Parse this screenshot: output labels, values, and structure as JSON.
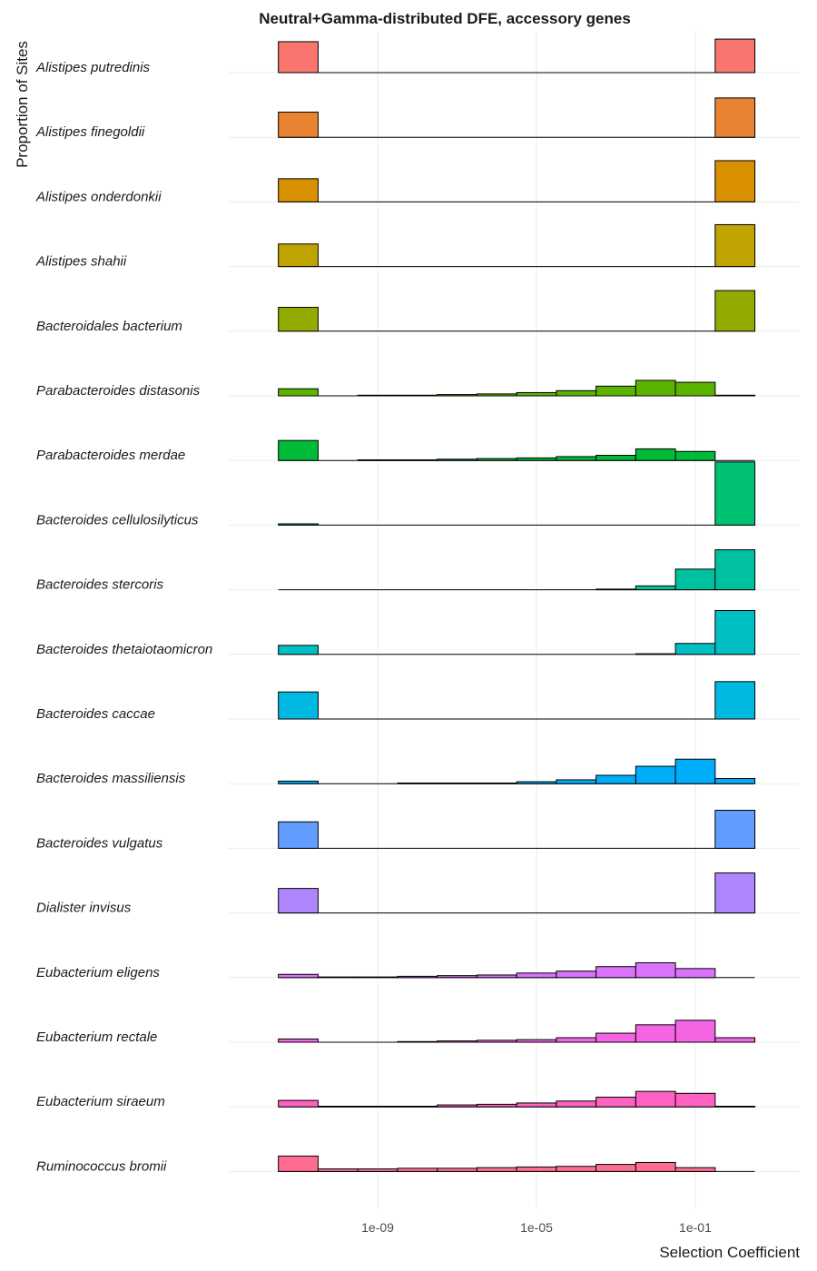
{
  "chart_data": {
    "type": "histogram",
    "title": "Neutral+Gamma-distributed DFE, accessory genes",
    "xlabel": "Selection Coefficient",
    "ylabel": "Proportion of Sites",
    "xscale": "log",
    "xlim": [
      1.778e-13,
      42.66
    ],
    "xticks": [
      {
        "value": 1e-09,
        "label": "1e-09"
      },
      {
        "value": 1e-05,
        "label": "1e-05"
      },
      {
        "value": 0.1,
        "label": "1e-01"
      }
    ],
    "ylim": [
      0,
      1
    ],
    "grid": true,
    "bins": [
      3.162e-12,
      3.162e-11,
      3.162e-10,
      3.162e-09,
      3.162e-08,
      3.162e-07,
      3.162e-06,
      3.162e-05,
      0.0003162,
      0.003162,
      0.03162,
      0.3162,
      3.162
    ],
    "series": [
      {
        "name": "Alistipes putredinis",
        "color": "#F8766D",
        "values": [
          0.48,
          0,
          0,
          0,
          0,
          0,
          0,
          0,
          0,
          0,
          0,
          0.52
        ]
      },
      {
        "name": "Alistipes finegoldii",
        "color": "#EA8331",
        "values": [
          0.39,
          0,
          0,
          0,
          0,
          0,
          0,
          0,
          0,
          0,
          0,
          0.61
        ]
      },
      {
        "name": "Alistipes onderdonkii",
        "color": "#D89000",
        "values": [
          0.36,
          0,
          0,
          0,
          0,
          0,
          0,
          0,
          0,
          0,
          0,
          0.64
        ]
      },
      {
        "name": "Alistipes shahii",
        "color": "#BFA300",
        "values": [
          0.35,
          0,
          0,
          0,
          0,
          0,
          0,
          0,
          0,
          0,
          0,
          0.65
        ]
      },
      {
        "name": "Bacteroidales bacterium",
        "color": "#93AA00",
        "values": [
          0.37,
          0,
          0,
          0,
          0,
          0,
          0,
          0,
          0,
          0,
          0,
          0.63
        ]
      },
      {
        "name": "Parabacteroides distasonis",
        "color": "#5BB300",
        "values": [
          0.11,
          0,
          0.01,
          0.01,
          0.02,
          0.03,
          0.05,
          0.08,
          0.15,
          0.24,
          0.21,
          0.01
        ]
      },
      {
        "name": "Parabacteroides merdae",
        "color": "#00BA38",
        "values": [
          0.31,
          0,
          0.01,
          0.01,
          0.02,
          0.03,
          0.04,
          0.06,
          0.08,
          0.18,
          0.14,
          0
        ]
      },
      {
        "name": "Bacteroides cellulosilyticus",
        "color": "#00C072",
        "values": [
          0.02,
          0,
          0,
          0,
          0,
          0,
          0,
          0,
          0,
          0,
          0,
          0.98
        ]
      },
      {
        "name": "Bacteroides stercoris",
        "color": "#00C19F",
        "values": [
          0,
          0,
          0,
          0,
          0,
          0,
          0,
          0,
          0.01,
          0.06,
          0.32,
          0.62
        ]
      },
      {
        "name": "Bacteroides thetaiotaomicron",
        "color": "#00BFC4",
        "values": [
          0.14,
          0,
          0,
          0,
          0,
          0,
          0,
          0,
          0,
          0.01,
          0.17,
          0.68
        ]
      },
      {
        "name": "Bacteroides caccae",
        "color": "#00B9E3",
        "values": [
          0.42,
          0,
          0,
          0,
          0,
          0,
          0,
          0,
          0,
          0,
          0,
          0.58
        ]
      },
      {
        "name": "Bacteroides massiliensis",
        "color": "#00ADFA",
        "values": [
          0.04,
          0,
          0,
          0.01,
          0.01,
          0.01,
          0.03,
          0.06,
          0.13,
          0.27,
          0.38,
          0.08
        ]
      },
      {
        "name": "Bacteroides vulgatus",
        "color": "#619CFF",
        "values": [
          0.41,
          0,
          0,
          0,
          0,
          0,
          0,
          0,
          0,
          0,
          0,
          0.59
        ]
      },
      {
        "name": "Dialister invisus",
        "color": "#AE87FF",
        "values": [
          0.38,
          0,
          0,
          0,
          0,
          0,
          0,
          0,
          0,
          0,
          0,
          0.62
        ]
      },
      {
        "name": "Eubacterium eligens",
        "color": "#DB72FB",
        "values": [
          0.05,
          0.01,
          0.01,
          0.02,
          0.03,
          0.04,
          0.07,
          0.1,
          0.17,
          0.23,
          0.14,
          0
        ]
      },
      {
        "name": "Eubacterium rectale",
        "color": "#F564E3",
        "values": [
          0.05,
          0,
          0,
          0.01,
          0.02,
          0.03,
          0.04,
          0.07,
          0.14,
          0.27,
          0.34,
          0.07
        ]
      },
      {
        "name": "Eubacterium siraeum",
        "color": "#FF61C3",
        "values": [
          0.1,
          0.01,
          0.01,
          0.01,
          0.03,
          0.04,
          0.06,
          0.09,
          0.15,
          0.24,
          0.21,
          0.01
        ]
      },
      {
        "name": "Ruminococcus bromii",
        "color": "#FF6C91",
        "values": [
          0.24,
          0.04,
          0.04,
          0.05,
          0.05,
          0.06,
          0.07,
          0.08,
          0.11,
          0.14,
          0.06,
          0
        ]
      }
    ]
  }
}
